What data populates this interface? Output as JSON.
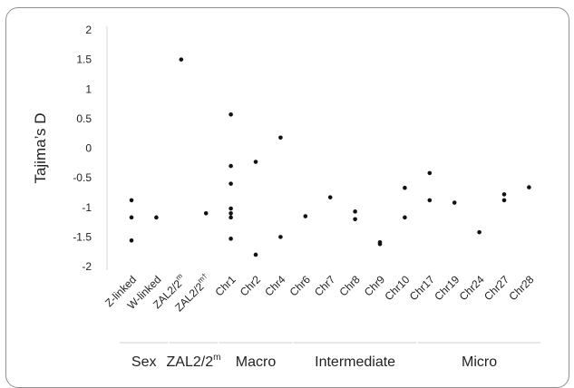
{
  "chart_data": {
    "type": "scatter",
    "ylabel": "Tajima’s D",
    "ylim": [
      -2,
      2
    ],
    "yticks": [
      "2",
      "1.5",
      "1",
      "0.5",
      "0",
      "-0.5",
      "-1",
      "-1.5",
      "-2"
    ],
    "categories": [
      {
        "label": "Z-linked"
      },
      {
        "label": "W-linked"
      },
      {
        "label": "ZAL2/2",
        "sup": "m"
      },
      {
        "label": "ZAL2/2",
        "sup": "m†"
      },
      {
        "label": "Chr1"
      },
      {
        "label": "Chr2"
      },
      {
        "label": "Chr4"
      },
      {
        "label": "Chr6"
      },
      {
        "label": "Chr7"
      },
      {
        "label": "Chr8"
      },
      {
        "label": "Chr9"
      },
      {
        "label": "Chr10"
      },
      {
        "label": "Chr17"
      },
      {
        "label": "Chr19"
      },
      {
        "label": "Chr24"
      },
      {
        "label": "Chr27"
      },
      {
        "label": "Chr28"
      }
    ],
    "points": [
      {
        "c": 0,
        "y": -0.88
      },
      {
        "c": 0,
        "y": -1.17
      },
      {
        "c": 0,
        "y": -1.56
      },
      {
        "c": 1,
        "y": -1.17
      },
      {
        "c": 2,
        "y": 1.5
      },
      {
        "c": 3,
        "y": -1.1
      },
      {
        "c": 4,
        "y": 0.57
      },
      {
        "c": 4,
        "y": -0.3
      },
      {
        "c": 4,
        "y": -0.6
      },
      {
        "c": 4,
        "y": -1.02
      },
      {
        "c": 4,
        "y": -1.1
      },
      {
        "c": 4,
        "y": -1.17
      },
      {
        "c": 4,
        "y": -1.53
      },
      {
        "c": 5,
        "y": -0.23
      },
      {
        "c": 5,
        "y": -1.8
      },
      {
        "c": 6,
        "y": 0.18
      },
      {
        "c": 6,
        "y": -1.5
      },
      {
        "c": 7,
        "y": -1.15
      },
      {
        "c": 8,
        "y": -0.83
      },
      {
        "c": 9,
        "y": -1.07
      },
      {
        "c": 9,
        "y": -1.2
      },
      {
        "c": 10,
        "y": -1.59
      },
      {
        "c": 10,
        "y": -1.62
      },
      {
        "c": 11,
        "y": -0.67
      },
      {
        "c": 11,
        "y": -1.17
      },
      {
        "c": 12,
        "y": -0.42
      },
      {
        "c": 12,
        "y": -0.88
      },
      {
        "c": 13,
        "y": -0.92
      },
      {
        "c": 14,
        "y": -1.42
      },
      {
        "c": 15,
        "y": -0.78
      },
      {
        "c": 15,
        "y": -0.88
      },
      {
        "c": 16,
        "y": -0.66
      }
    ],
    "groups": [
      {
        "label": "Sex",
        "from": 0,
        "to": 1
      },
      {
        "label": "ZAL2/2",
        "sup": "m",
        "from": 2,
        "to": 3
      },
      {
        "label": "Macro",
        "from": 4,
        "to": 6
      },
      {
        "label": "Intermediate",
        "from": 7,
        "to": 11
      },
      {
        "label": "Micro",
        "from": 12,
        "to": 16
      }
    ],
    "grid": false,
    "legend": "none"
  }
}
